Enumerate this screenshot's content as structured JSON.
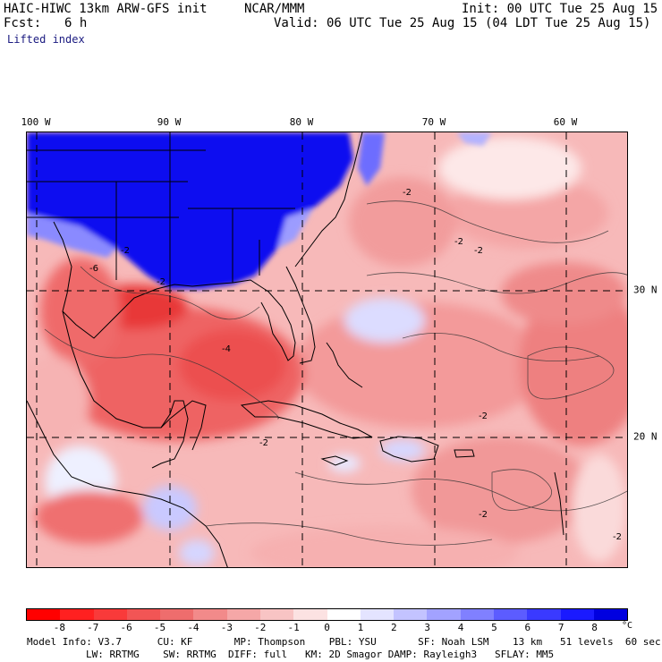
{
  "header": {
    "title": "HAIC-HIWC 13km ARW-GFS init",
    "center": "NCAR/MMM",
    "init": "Init: 00 UTC Tue 25 Aug 15",
    "fcst_label": "Fcst:",
    "fcst_value": "6 h",
    "valid": "Valid: 06 UTC Tue 25 Aug 15 (04 LDT Tue 25 Aug 15)",
    "field": "Lifted index"
  },
  "map": {
    "lon_labels": [
      "100 W",
      "90 W",
      "80 W",
      "70 W",
      "60 W"
    ],
    "lat_labels": [
      "30 N",
      "20 N"
    ],
    "contour_labels": [
      "-6",
      "-2",
      "-2",
      "-2",
      "-2",
      "-2",
      "-4",
      "-2",
      "-2",
      "-2",
      "-2"
    ]
  },
  "colorbar": {
    "ticks": [
      "-8",
      "-7",
      "-6",
      "-5",
      "-4",
      "-3",
      "-2",
      "-1",
      "0",
      "1",
      "2",
      "3",
      "4",
      "5",
      "6",
      "7",
      "8"
    ],
    "unit": "°C",
    "colors": [
      "#ff0000",
      "#ff2020",
      "#f93a3a",
      "#f25555",
      "#ee6d6d",
      "#f28a8a",
      "#f5a7a7",
      "#f8c4c4",
      "#fce2e2",
      "#ffffff",
      "#e4e4ff",
      "#c3c3ff",
      "#a2a2ff",
      "#8080ff",
      "#5c5cff",
      "#3a3aff",
      "#1a1aff",
      "#0000e0"
    ]
  },
  "footer": {
    "line1": "Model Info: V3.7      CU: KF       MP: Thompson    PBL: YSU       SF: Noah LSM    13 km   51 levels  60 sec",
    "line2": "LW: RRTMG    SW: RRTMG  DIFF: full   KM: 2D Smagor DAMP: Rayleigh3   SFLAY: MM5"
  }
}
